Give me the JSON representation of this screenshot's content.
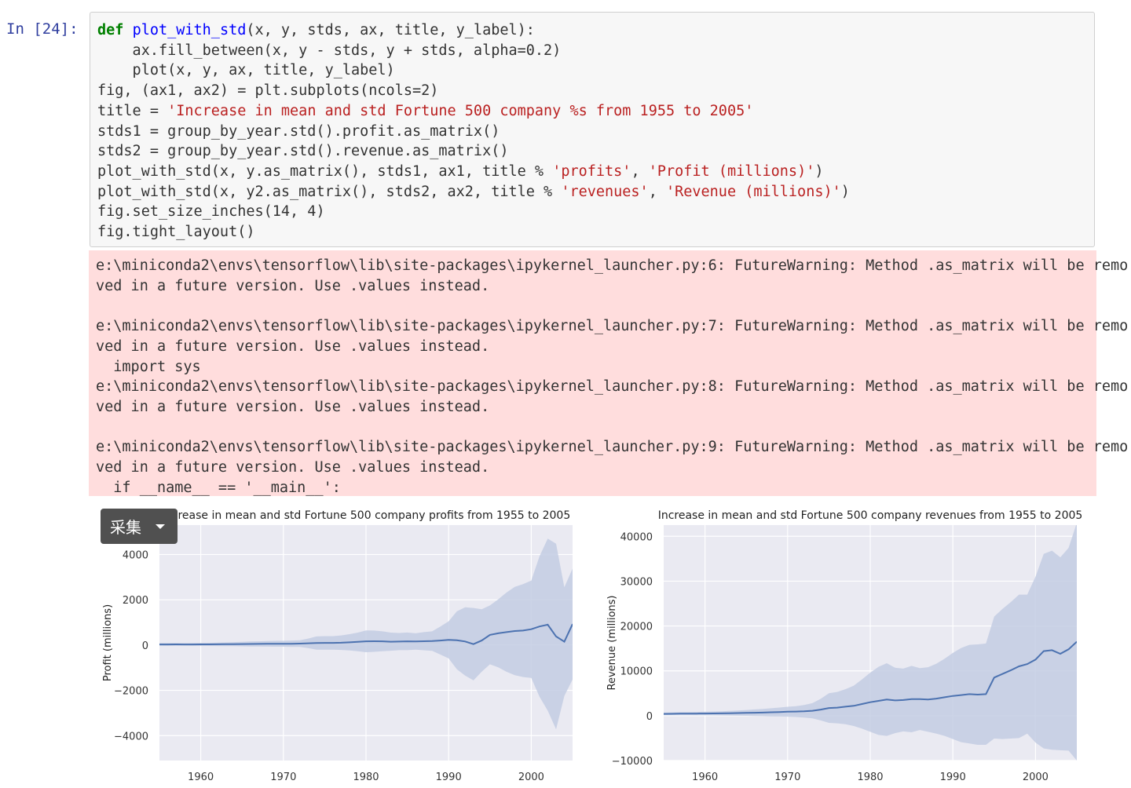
{
  "cell": {
    "prompt": "In  [24]:",
    "code": {
      "l1_kw": "def",
      "l1_fn": "plot_with_std",
      "l1_rest": "(x, y, stds, ax, title, y_label):",
      "l2": "    ax.fill_between(x, y - stds, y + stds, alpha=0.2)",
      "l3": "    plot(x, y, ax, title, y_label)",
      "l4": "fig, (ax1, ax2) = plt.subplots(ncols=2)",
      "l5_a": "title = ",
      "l5_str": "'Increase in mean and std Fortune 500 company %s from 1955 to 2005'",
      "l6": "stds1 = group_by_year.std().profit.as_matrix()",
      "l7": "stds2 = group_by_year.std().revenue.as_matrix()",
      "l8_a": "plot_with_std(x, y.as_matrix(), stds1, ax1, title % ",
      "l8_s1": "'profits'",
      "l8_b": ", ",
      "l8_s2": "'Profit (millions)'",
      "l8_c": ")",
      "l9_a": "plot_with_std(x, y2.as_matrix(), stds2, ax2, title % ",
      "l9_s1": "'revenues'",
      "l9_b": ", ",
      "l9_s2": "'Revenue (millions)'",
      "l9_c": ")",
      "l10": "fig.set_size_inches(14, 4)",
      "l11": "fig.tight_layout()"
    },
    "stderr": "e:\\miniconda2\\envs\\tensorflow\\lib\\site-packages\\ipykernel_launcher.py:6: FutureWarning: Method .as_matrix will be remo\nved in a future version. Use .values instead.\n\ne:\\miniconda2\\envs\\tensorflow\\lib\\site-packages\\ipykernel_launcher.py:7: FutureWarning: Method .as_matrix will be remo\nved in a future version. Use .values instead.\n  import sys\ne:\\miniconda2\\envs\\tensorflow\\lib\\site-packages\\ipykernel_launcher.py:8: FutureWarning: Method .as_matrix will be remo\nved in a future version. Use .values instead.\n\ne:\\miniconda2\\envs\\tensorflow\\lib\\site-packages\\ipykernel_launcher.py:9: FutureWarning: Method .as_matrix will be remo\nved in a future version. Use .values instead.\n  if __name__ == '__main__':"
  },
  "overlay": {
    "collect_label": "采集"
  },
  "colors": {
    "line": "#4c72b0",
    "band": "#c3cce3",
    "axes_bg": "#eaeaf2",
    "grid": "#ffffff"
  },
  "chart_data": [
    {
      "type": "line",
      "title": "Increase in mean and std Fortune 500 company profits from 1955 to 2005",
      "ylabel": "Profit (millions)",
      "xlabel": "",
      "xlim": [
        1955,
        2005
      ],
      "ylim": [
        -5100,
        5300
      ],
      "xticks": [
        1960,
        1970,
        1980,
        1990,
        2000
      ],
      "yticks": [
        -4000,
        -2000,
        0,
        2000,
        4000
      ],
      "grid": true,
      "x": [
        1955,
        1956,
        1957,
        1958,
        1959,
        1960,
        1961,
        1962,
        1963,
        1964,
        1965,
        1966,
        1967,
        1968,
        1969,
        1970,
        1971,
        1972,
        1973,
        1974,
        1975,
        1976,
        1977,
        1978,
        1979,
        1980,
        1981,
        1982,
        1983,
        1984,
        1985,
        1986,
        1987,
        1988,
        1989,
        1990,
        1991,
        1992,
        1993,
        1994,
        1995,
        1996,
        1997,
        1998,
        1999,
        2000,
        2001,
        2002,
        2003,
        2004,
        2005
      ],
      "mean": [
        28,
        28,
        29,
        27,
        28,
        30,
        31,
        33,
        36,
        40,
        44,
        48,
        50,
        55,
        57,
        57,
        60,
        66,
        78,
        90,
        95,
        95,
        105,
        120,
        140,
        165,
        170,
        165,
        150,
        155,
        165,
        160,
        170,
        175,
        200,
        230,
        210,
        160,
        40,
        200,
        450,
        520,
        570,
        620,
        640,
        700,
        820,
        900,
        380,
        150,
        930
      ],
      "std": [
        60,
        62,
        64,
        60,
        62,
        68,
        70,
        74,
        80,
        90,
        100,
        110,
        116,
        126,
        130,
        132,
        140,
        150,
        210,
        290,
        300,
        300,
        320,
        360,
        410,
        480,
        470,
        440,
        400,
        380,
        390,
        360,
        400,
        430,
        620,
        820,
        1280,
        1510,
        1600,
        1380,
        1300,
        1500,
        1750,
        1950,
        2050,
        2150,
        3100,
        3800,
        4100,
        2400,
        2450
      ]
    },
    {
      "type": "line",
      "title": "Increase in mean and std Fortune 500 company revenues from 1955 to 2005",
      "ylabel": "Revenue (millions)",
      "xlabel": "",
      "xlim": [
        1955,
        2005
      ],
      "ylim": [
        -10000,
        42500
      ],
      "xticks": [
        1960,
        1970,
        1980,
        1990,
        2000
      ],
      "yticks": [
        -10000,
        0,
        10000,
        20000,
        30000,
        40000
      ],
      "grid": true,
      "x": [
        1955,
        1956,
        1957,
        1958,
        1959,
        1960,
        1961,
        1962,
        1963,
        1964,
        1965,
        1966,
        1967,
        1968,
        1969,
        1970,
        1971,
        1972,
        1973,
        1974,
        1975,
        1976,
        1977,
        1978,
        1979,
        1980,
        1981,
        1982,
        1983,
        1984,
        1985,
        1986,
        1987,
        1988,
        1989,
        1990,
        1991,
        1992,
        1993,
        1994,
        1995,
        1996,
        1997,
        1998,
        1999,
        2000,
        2001,
        2002,
        2003,
        2004,
        2005
      ],
      "mean": [
        400,
        420,
        440,
        450,
        460,
        480,
        500,
        520,
        550,
        580,
        620,
        660,
        700,
        760,
        820,
        880,
        920,
        980,
        1100,
        1350,
        1700,
        1800,
        2000,
        2200,
        2600,
        3000,
        3300,
        3600,
        3400,
        3500,
        3700,
        3700,
        3600,
        3800,
        4100,
        4400,
        4600,
        4800,
        4700,
        4800,
        8500,
        9300,
        10100,
        11000,
        11500,
        12500,
        14400,
        14600,
        13800,
        14800,
        16500
      ],
      "std": [
        300,
        320,
        340,
        360,
        380,
        400,
        430,
        470,
        520,
        580,
        650,
        730,
        800,
        900,
        1000,
        1100,
        1200,
        1400,
        1700,
        2400,
        3300,
        3500,
        3900,
        4500,
        5500,
        6600,
        7600,
        8100,
        7300,
        7000,
        7400,
        6900,
        7200,
        7800,
        8600,
        9600,
        10500,
        11000,
        11200,
        11300,
        13600,
        14500,
        15200,
        16000,
        15500,
        18500,
        21700,
        22200,
        21500,
        22600,
        26500
      ]
    }
  ]
}
